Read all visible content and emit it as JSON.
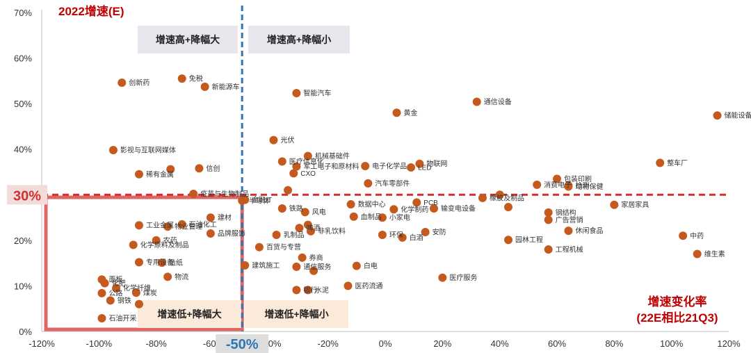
{
  "chart_data": {
    "type": "scatter",
    "title": "2022增速(E)",
    "xlabel": "增速变化率",
    "xlabel_sub": "(22E相比21Q3)",
    "xlim": [
      -120,
      120
    ],
    "ylim": [
      0,
      70
    ],
    "x_ticks": [
      "-120%",
      "-100%",
      "-80%",
      "-60%",
      "-40%",
      "-20%",
      "0%",
      "20%",
      "40%",
      "60%",
      "80%",
      "100%",
      "120%"
    ],
    "y_ticks": [
      "0%",
      "10%",
      "20%",
      "30%",
      "40%",
      "50%",
      "60%",
      "70%"
    ],
    "x_tick_values": [
      -120,
      -100,
      -80,
      -60,
      -40,
      -20,
      0,
      20,
      40,
      60,
      80,
      100,
      120
    ],
    "y_tick_values": [
      0,
      10,
      20,
      30,
      40,
      50,
      60,
      70
    ],
    "grid": false,
    "threshold_x": -50,
    "threshold_x_label": "-50%",
    "threshold_y": 30,
    "threshold_y_label": "30%",
    "quadrants": {
      "top_left": "增速高+降幅大",
      "top_right": "增速高+降幅小",
      "bottom_left": "增速低+降幅大",
      "bottom_right": "增速低+降幅小"
    },
    "colors": {
      "point": "#C55A1F",
      "title": "#C00000",
      "threshold_y": "#D32F2F",
      "threshold_x": "#2E75B6",
      "highlight_box": "#E06666"
    },
    "points": [
      {
        "name": "创新药",
        "x": -92,
        "y": 54.6
      },
      {
        "name": "免税",
        "x": -71,
        "y": 55.5
      },
      {
        "name": "新能源车",
        "x": -63,
        "y": 53.7
      },
      {
        "name": "影视与互联网媒体",
        "x": -95,
        "y": 39.8
      },
      {
        "name": "稀有金属",
        "x": -86,
        "y": 34.5
      },
      {
        "name": "",
        "x": -75,
        "y": 35.6
      },
      {
        "name": "信创",
        "x": -65,
        "y": 35.8
      },
      {
        "name": "疫苗与生物制品",
        "x": -67,
        "y": 30.2
      },
      {
        "name": "半导体",
        "x": -50,
        "y": 28.7
      },
      {
        "name": "工业金属",
        "x": -86,
        "y": 23.3
      },
      {
        "name": "物业管理",
        "x": -76,
        "y": 23.0
      },
      {
        "name": "石油化工",
        "x": -71,
        "y": 23.5
      },
      {
        "name": "建材",
        "x": -61,
        "y": 25.0
      },
      {
        "name": "化学原料及制品",
        "x": -88,
        "y": 19.0
      },
      {
        "name": "农药",
        "x": -80,
        "y": 20.0
      },
      {
        "name": "品牌服饰",
        "x": -61,
        "y": 21.5
      },
      {
        "name": "专用设备",
        "x": -86,
        "y": 15.2
      },
      {
        "name": "面板",
        "x": -99,
        "y": 11.4
      },
      {
        "name": "化肥",
        "x": -98,
        "y": 10.6
      },
      {
        "name": "造纸",
        "x": -78,
        "y": 15.1
      },
      {
        "name": "物流",
        "x": -76,
        "y": 12.0
      },
      {
        "name": "化学纤维",
        "x": -94,
        "y": 9.5
      },
      {
        "name": "公路",
        "x": -99,
        "y": 8.4
      },
      {
        "name": "煤炭",
        "x": -87,
        "y": 8.5
      },
      {
        "name": "钢铁",
        "x": -96,
        "y": 6.8
      },
      {
        "name": "石油开采",
        "x": -99,
        "y": 2.9
      },
      {
        "name": "",
        "x": -86,
        "y": 6.0
      },
      {
        "name": "智能汽车",
        "x": -31,
        "y": 52.3
      },
      {
        "name": "光伏",
        "x": -39,
        "y": 42.0
      },
      {
        "name": "医疗信息化",
        "x": -36,
        "y": 37.3
      },
      {
        "name": "机械基础件",
        "x": -27,
        "y": 38.5
      },
      {
        "name": "军工电子和原材料",
        "x": -31,
        "y": 36.2
      },
      {
        "name": "CXO",
        "x": -32,
        "y": 34.7
      },
      {
        "name": "",
        "x": -34,
        "y": 31.0
      },
      {
        "name": "金融IT",
        "x": -49,
        "y": 28.9
      },
      {
        "name": "铁路",
        "x": -36,
        "y": 27.0
      },
      {
        "name": "风电",
        "x": -28,
        "y": 26.2
      },
      {
        "name": "啤酒",
        "x": -30,
        "y": 22.7
      },
      {
        "name": "",
        "x": -27,
        "y": 23.4
      },
      {
        "name": "乳制品",
        "x": -38,
        "y": 21.2
      },
      {
        "name": "非乳饮料",
        "x": -26,
        "y": 22.0
      },
      {
        "name": "百货与专营",
        "x": -44,
        "y": 18.5
      },
      {
        "name": "券商",
        "x": -29,
        "y": 16.2
      },
      {
        "name": "建筑施工",
        "x": -49,
        "y": 14.5
      },
      {
        "name": "通信服务",
        "x": -31,
        "y": 14.2
      },
      {
        "name": "",
        "x": -25,
        "y": 13.3
      },
      {
        "name": "银行",
        "x": -31,
        "y": 9.1
      },
      {
        "name": "水泥",
        "x": -27,
        "y": 9.1
      },
      {
        "name": "白电",
        "x": -10,
        "y": 14.4
      },
      {
        "name": "医药流通",
        "x": -13,
        "y": 10.0
      },
      {
        "name": "黄金",
        "x": 4,
        "y": 48.0
      },
      {
        "name": "通信设备",
        "x": 32,
        "y": 50.4
      },
      {
        "name": "物联网",
        "x": 12,
        "y": 36.8
      },
      {
        "name": "电子化学品",
        "x": -7,
        "y": 36.3
      },
      {
        "name": "LED",
        "x": 9,
        "y": 36.0
      },
      {
        "name": "汽车零部件",
        "x": -6,
        "y": 32.5
      },
      {
        "name": "数据中心",
        "x": -12,
        "y": 27.9
      },
      {
        "name": "化学制药",
        "x": 3,
        "y": 26.8
      },
      {
        "name": "PCB",
        "x": 11,
        "y": 28.3
      },
      {
        "name": "输变电设备",
        "x": 17,
        "y": 27.0
      },
      {
        "name": "血制品",
        "x": -11,
        "y": 25.2
      },
      {
        "name": "小家电",
        "x": -1,
        "y": 25.0
      },
      {
        "name": "环保",
        "x": -1,
        "y": 21.2
      },
      {
        "name": "白酒",
        "x": 6,
        "y": 20.6
      },
      {
        "name": "安防",
        "x": 14,
        "y": 21.8
      },
      {
        "name": "医疗服务",
        "x": 20,
        "y": 11.8
      },
      {
        "name": "储能设备",
        "x": 116,
        "y": 47.4
      },
      {
        "name": "整车厂",
        "x": 96,
        "y": 37.0
      },
      {
        "name": "包装印刷",
        "x": 60,
        "y": 33.5
      },
      {
        "name": "消费电子",
        "x": 53,
        "y": 32.2
      },
      {
        "name": "检测",
        "x": 64,
        "y": 32.0
      },
      {
        "name": "动物保健",
        "x": 64,
        "y": 31.8
      },
      {
        "name": "",
        "x": 40,
        "y": 30.0
      },
      {
        "name": "橡胶及制品",
        "x": 34,
        "y": 29.3
      },
      {
        "name": "",
        "x": 43,
        "y": 27.3
      },
      {
        "name": "钢结构",
        "x": 57,
        "y": 26.1
      },
      {
        "name": "广告营销",
        "x": 57,
        "y": 24.5
      },
      {
        "name": "家居家具",
        "x": 80,
        "y": 27.8
      },
      {
        "name": "休闲食品",
        "x": 64,
        "y": 22.1
      },
      {
        "name": "园林工程",
        "x": 43,
        "y": 20.1
      },
      {
        "name": "工程机械",
        "x": 57,
        "y": 18.0
      },
      {
        "name": "中药",
        "x": 104,
        "y": 21.0
      },
      {
        "name": "维生素",
        "x": 109,
        "y": 17.0
      }
    ]
  }
}
